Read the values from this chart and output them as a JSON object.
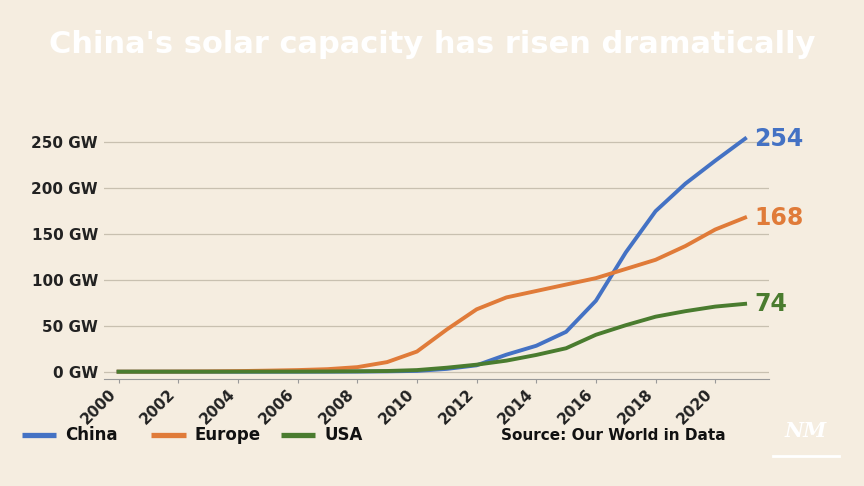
{
  "title": "China's solar capacity has risen dramatically",
  "title_color": "#ffffff",
  "title_bg_color": "#000000",
  "bg_color": "#f5ede0",
  "years": [
    2000,
    2001,
    2002,
    2003,
    2004,
    2005,
    2006,
    2007,
    2008,
    2009,
    2010,
    2011,
    2012,
    2013,
    2014,
    2015,
    2016,
    2017,
    2018,
    2019,
    2020,
    2021
  ],
  "china": [
    0.02,
    0.03,
    0.04,
    0.05,
    0.06,
    0.07,
    0.08,
    0.1,
    0.17,
    0.4,
    0.9,
    3.1,
    7.0,
    18.6,
    28.3,
    43.5,
    77.4,
    130.0,
    175.0,
    205.0,
    230.0,
    254.0
  ],
  "europe": [
    0.1,
    0.15,
    0.25,
    0.4,
    0.7,
    1.2,
    1.8,
    2.8,
    5.0,
    10.5,
    22.0,
    46.0,
    68.0,
    81.0,
    88.0,
    95.0,
    102.0,
    112.0,
    122.0,
    137.0,
    155.0,
    168.0
  ],
  "usa": [
    0.05,
    0.06,
    0.07,
    0.08,
    0.1,
    0.15,
    0.2,
    0.3,
    0.5,
    0.8,
    1.8,
    4.4,
    7.7,
    12.1,
    18.3,
    25.6,
    40.3,
    50.7,
    60.0,
    66.0,
    71.0,
    74.0
  ],
  "china_color": "#4472c4",
  "europe_color": "#e07b39",
  "usa_color": "#4a7c2f",
  "end_labels": {
    "china": 254,
    "europe": 168,
    "usa": 74
  },
  "yticks": [
    0,
    50,
    100,
    150,
    200,
    250
  ],
  "ytick_labels": [
    "0 GW",
    "50 GW",
    "100 GW",
    "150 GW",
    "200 GW",
    "250 GW"
  ],
  "ylim": [
    -8,
    278
  ],
  "xlim": [
    1999.5,
    2021.8
  ],
  "xticks": [
    2000,
    2002,
    2004,
    2006,
    2008,
    2010,
    2012,
    2014,
    2016,
    2018,
    2020
  ],
  "source_text": "Source: Our World in Data",
  "legend_entries": [
    "China",
    "Europe",
    "USA"
  ],
  "line_width": 2.8,
  "title_fontsize": 22,
  "label_fontsize": 17,
  "tick_fontsize": 11
}
